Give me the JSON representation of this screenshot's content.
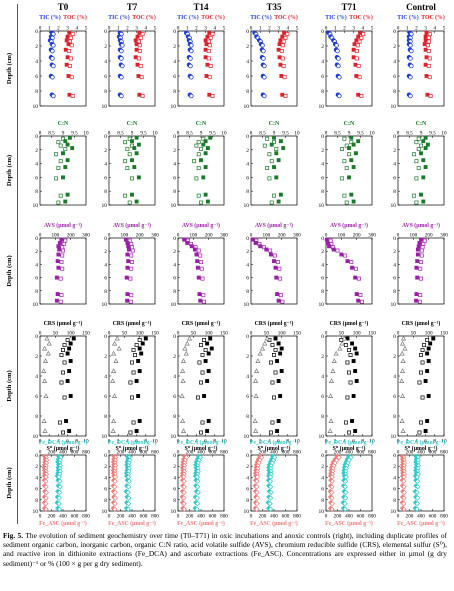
{
  "figure": {
    "columns": [
      "T0",
      "T7",
      "T14",
      "T35",
      "T71",
      "Control"
    ],
    "caption": {
      "label": "Fig. 5.",
      "text": "The evolution of sediment geochemistry over time (T0–T71) in oxic incubations and anoxic controls (right), including duplicate profiles of sediment organic carbon, inorganic carbon, organic C:N ratio, acid volatile sulfide (AVS), chromium reducible sulfide (CRS), elemental sulfur (S⁰), and reactive iron in dithionite extractions (Fe_DCA) and ascorbate extractions (Fe_ASC). Concentrations are expressed either in µmol (g dry sediment)⁻¹ or % (100 × g per g dry sediment)."
    },
    "y_axis_label": "Depth (cm)",
    "colors": {
      "tic": "#1f3ed6",
      "toc": "#e0202a",
      "cn": "#1a7a2a",
      "avs": "#9b1fa8",
      "crs": "#000000",
      "s0": "#777777",
      "fe_dca": "#2ec9c9",
      "fe_asc": "#f07a7a"
    }
  },
  "chart_data": [
    {
      "type": "scatter",
      "row": "carbon",
      "top_labels": [
        "TIC (%)",
        "TOC (%)"
      ],
      "xticks": [
        "0",
        "1",
        "2",
        "3",
        "4",
        "5"
      ],
      "xlim": [
        0,
        5
      ],
      "ylim": [
        0,
        10
      ],
      "yticks": [
        "0",
        "2",
        "4",
        "6",
        "8",
        "10"
      ],
      "depths": [
        0.25,
        0.75,
        1.25,
        1.75,
        2.5,
        3.5,
        4.5,
        6,
        8.5
      ],
      "profiles": {
        "T0": {
          "TIC": [
            1.3,
            1.2,
            1.1,
            1.3,
            1.2,
            1.2,
            1.3,
            1.2,
            1.3
          ],
          "TOC": [
            3.2,
            3.0,
            2.9,
            3.1,
            2.8,
            3.0,
            2.9,
            3.1,
            3.2
          ]
        },
        "T7": {
          "TIC": [
            1.2,
            1.1,
            1.2,
            1.3,
            1.2,
            1.2,
            1.3,
            1.2,
            1.2
          ],
          "TOC": [
            3.3,
            3.1,
            2.9,
            3.0,
            3.0,
            2.9,
            3.1,
            3.2,
            3.3
          ]
        },
        "T14": {
          "TIC": [
            0.9,
            1.1,
            1.2,
            1.3,
            1.3,
            1.2,
            1.2,
            1.3,
            1.3
          ],
          "TOC": [
            3.4,
            3.2,
            3.0,
            3.1,
            3.0,
            3.0,
            3.2,
            3.1,
            3.4
          ]
        },
        "T35": {
          "TIC": [
            0.4,
            0.6,
            0.9,
            1.1,
            1.2,
            1.2,
            1.3,
            1.3,
            1.3
          ],
          "TOC": [
            3.6,
            3.4,
            3.2,
            3.1,
            3.0,
            3.1,
            3.2,
            3.3,
            3.4
          ]
        },
        "T71": {
          "TIC": [
            0.3,
            0.5,
            0.8,
            1.0,
            1.1,
            1.2,
            1.2,
            1.3,
            1.3
          ],
          "TOC": [
            3.7,
            3.5,
            3.3,
            3.1,
            3.0,
            3.0,
            3.2,
            3.3,
            3.5
          ]
        },
        "Control": {
          "TIC": [
            1.3,
            1.2,
            1.2,
            1.2,
            1.3,
            1.2,
            1.3,
            1.2,
            1.2
          ],
          "TOC": [
            3.1,
            3.0,
            3.0,
            2.9,
            3.0,
            3.1,
            3.0,
            3.1,
            3.2
          ]
        }
      }
    },
    {
      "type": "scatter",
      "row": "cn",
      "top_labels": [
        "C:N"
      ],
      "xticks": [
        "8",
        "8.5",
        "9",
        "9.5",
        "10"
      ],
      "xlim": [
        8,
        10
      ],
      "ylim": [
        0,
        10
      ],
      "yticks": [
        "0",
        "2",
        "4",
        "6",
        "8",
        "10"
      ],
      "depths": [
        0.25,
        0.75,
        1.25,
        1.75,
        2.5,
        3.5,
        4.5,
        6,
        8.5,
        9.5
      ],
      "profiles": {
        "T0": [
          9.3,
          9.1,
          9.2,
          9.4,
          9.0,
          9.2,
          9.1,
          9.0,
          9.2,
          9.1
        ],
        "T7": [
          9.2,
          9.0,
          9.3,
          9.1,
          9.2,
          9.0,
          9.1,
          9.3,
          9.0,
          9.2
        ],
        "T14": [
          9.4,
          9.2,
          9.1,
          9.3,
          9.2,
          9.0,
          9.2,
          9.1,
          9.2,
          9.3
        ],
        "T35": [
          9.0,
          9.3,
          8.9,
          9.4,
          9.1,
          9.2,
          9.0,
          9.1,
          9.3,
          9.2
        ],
        "T71": [
          9.1,
          9.4,
          9.2,
          9.0,
          9.3,
          9.1,
          9.2,
          9.0,
          9.1,
          9.2
        ],
        "Control": [
          9.2,
          9.1,
          9.3,
          9.2,
          9.0,
          9.1,
          9.2,
          9.1,
          9.0,
          9.1
        ]
      }
    },
    {
      "type": "scatter",
      "row": "avs",
      "top_labels": [
        "AVS (µmol g⁻¹)"
      ],
      "xticks": [
        "0",
        "100",
        "200",
        "300"
      ],
      "xlim": [
        0,
        300
      ],
      "ylim": [
        0,
        10
      ],
      "yticks": [
        "0",
        "2",
        "4",
        "6",
        "8",
        "10"
      ],
      "depths": [
        0.25,
        0.75,
        1.25,
        1.75,
        2.5,
        3.5,
        4.5,
        6,
        8.5,
        9.5
      ],
      "profiles": {
        "T0": [
          140,
          130,
          120,
          125,
          120,
          115,
          120,
          110,
          115,
          110
        ],
        "T7": [
          110,
          120,
          125,
          130,
          120,
          125,
          120,
          115,
          120,
          118
        ],
        "T14": [
          40,
          60,
          90,
          110,
          120,
          125,
          130,
          135,
          140,
          145
        ],
        "T35": [
          10,
          30,
          60,
          100,
          130,
          150,
          160,
          165,
          170,
          180
        ],
        "T71": [
          5,
          10,
          20,
          50,
          100,
          140,
          170,
          190,
          200,
          210
        ],
        "Control": [
          150,
          140,
          135,
          130,
          130,
          125,
          120,
          125,
          120,
          118
        ]
      }
    },
    {
      "type": "scatter",
      "row": "sulfur",
      "top_labels": [
        "CRS (µmol g⁻¹)",
        "S⁰ (µmol g⁻¹)"
      ],
      "xticks_top": [
        "0",
        "50",
        "100",
        "150"
      ],
      "xticks_bottom": [
        "0",
        "2",
        "4",
        "6",
        "8",
        "10"
      ],
      "xlim_top": [
        0,
        150
      ],
      "xlim_bottom": [
        0,
        10
      ],
      "ylim": [
        0,
        10
      ],
      "yticks": [
        "0",
        "2",
        "4",
        "6",
        "8",
        "10"
      ],
      "depths": [
        0.25,
        0.75,
        1.25,
        1.75,
        2.5,
        3.5,
        4.5,
        6,
        8.5,
        9.5
      ],
      "profiles": {
        "T0": {
          "CRS": [
            110,
            100,
            95,
            90,
            100,
            95,
            90,
            100,
            85,
            95
          ],
          "S0": [
            1.5,
            2.0,
            1.0,
            1.8,
            1.2,
            0.8,
            1.0,
            1.3,
            0.9,
            1.1
          ]
        },
        "T7": {
          "CRS": [
            120,
            110,
            100,
            105,
            95,
            100,
            90,
            95,
            100,
            90
          ],
          "S0": [
            1.8,
            1.2,
            2.2,
            1.0,
            1.5,
            1.0,
            0.8,
            1.2,
            1.0,
            0.9
          ]
        },
        "T14": {
          "CRS": [
            105,
            95,
            110,
            100,
            90,
            100,
            95,
            85,
            100,
            95
          ],
          "S0": [
            2.5,
            2.0,
            1.5,
            1.8,
            1.2,
            1.0,
            1.1,
            0.9,
            1.0,
            1.2
          ]
        },
        "T35": {
          "CRS": [
            80,
            90,
            100,
            95,
            85,
            100,
            90,
            95,
            90,
            85
          ],
          "S0": [
            3.5,
            3.0,
            2.5,
            2.0,
            1.5,
            1.2,
            1.0,
            1.1,
            0.9,
            1.0
          ]
        },
        "T71": {
          "CRS": [
            70,
            85,
            95,
            100,
            90,
            95,
            100,
            90,
            85,
            95
          ],
          "S0": [
            4.0,
            3.5,
            3.0,
            2.2,
            1.8,
            1.5,
            1.2,
            1.0,
            1.1,
            0.9
          ]
        },
        "Control": {
          "CRS": [
            115,
            105,
            100,
            95,
            100,
            95,
            90,
            100,
            95,
            90
          ],
          "S0": [
            1.2,
            1.0,
            1.5,
            0.9,
            1.1,
            1.0,
            0.8,
            1.0,
            0.9,
            1.1
          ]
        }
      }
    },
    {
      "type": "scatter",
      "row": "iron",
      "top_labels": [
        "Fe_DCA (µmol g⁻¹)"
      ],
      "bottom_labels": [
        "Fe_ASC (µmol g⁻¹)"
      ],
      "xticks": [
        "0",
        "200",
        "400",
        "600",
        "800"
      ],
      "xlim": [
        0,
        800
      ],
      "ylim": [
        0,
        10
      ],
      "yticks": [
        "0",
        "2",
        "4",
        "6",
        "8",
        "10"
      ],
      "depths": [
        0.25,
        0.75,
        1.25,
        1.75,
        2.25,
        2.75,
        3.25,
        3.75,
        4.5,
        5.5,
        6.5,
        7.5,
        8.5,
        9.5
      ],
      "profiles": {
        "T0": {
          "DCA": [
            330,
            320,
            310,
            325,
            315,
            320,
            310,
            300,
            315,
            320,
            310,
            305,
            300,
            310
          ],
          "ASC": [
            80,
            90,
            85,
            80,
            75,
            80,
            85,
            80,
            75,
            80,
            85,
            80,
            75,
            80
          ]
        },
        "T7": {
          "DCA": [
            320,
            330,
            315,
            310,
            320,
            315,
            305,
            310,
            320,
            310,
            300,
            315,
            310,
            305
          ],
          "ASC": [
            90,
            85,
            80,
            85,
            80,
            75,
            80,
            85,
            80,
            75,
            80,
            85,
            80,
            75
          ]
        },
        "T14": {
          "DCA": [
            360,
            340,
            320,
            310,
            315,
            320,
            310,
            305,
            315,
            310,
            320,
            305,
            310,
            300
          ],
          "ASC": [
            120,
            100,
            90,
            85,
            80,
            85,
            80,
            75,
            80,
            85,
            80,
            75,
            80,
            85
          ]
        },
        "T35": {
          "DCA": [
            380,
            360,
            340,
            320,
            310,
            315,
            320,
            310,
            305,
            310,
            320,
            310,
            300,
            310
          ],
          "ASC": [
            160,
            130,
            110,
            95,
            90,
            85,
            80,
            85,
            80,
            75,
            80,
            85,
            80,
            75
          ]
        },
        "T71": {
          "DCA": [
            400,
            370,
            350,
            330,
            320,
            315,
            310,
            320,
            310,
            305,
            315,
            310,
            300,
            305
          ],
          "ASC": [
            200,
            160,
            130,
            110,
            95,
            90,
            85,
            80,
            85,
            80,
            75,
            80,
            85,
            80
          ]
        },
        "Control": {
          "DCA": [
            315,
            320,
            310,
            325,
            315,
            310,
            320,
            305,
            310,
            315,
            300,
            310,
            305,
            300
          ],
          "ASC": [
            75,
            80,
            85,
            80,
            75,
            80,
            85,
            80,
            75,
            80,
            85,
            80,
            75,
            80
          ]
        }
      }
    }
  ]
}
